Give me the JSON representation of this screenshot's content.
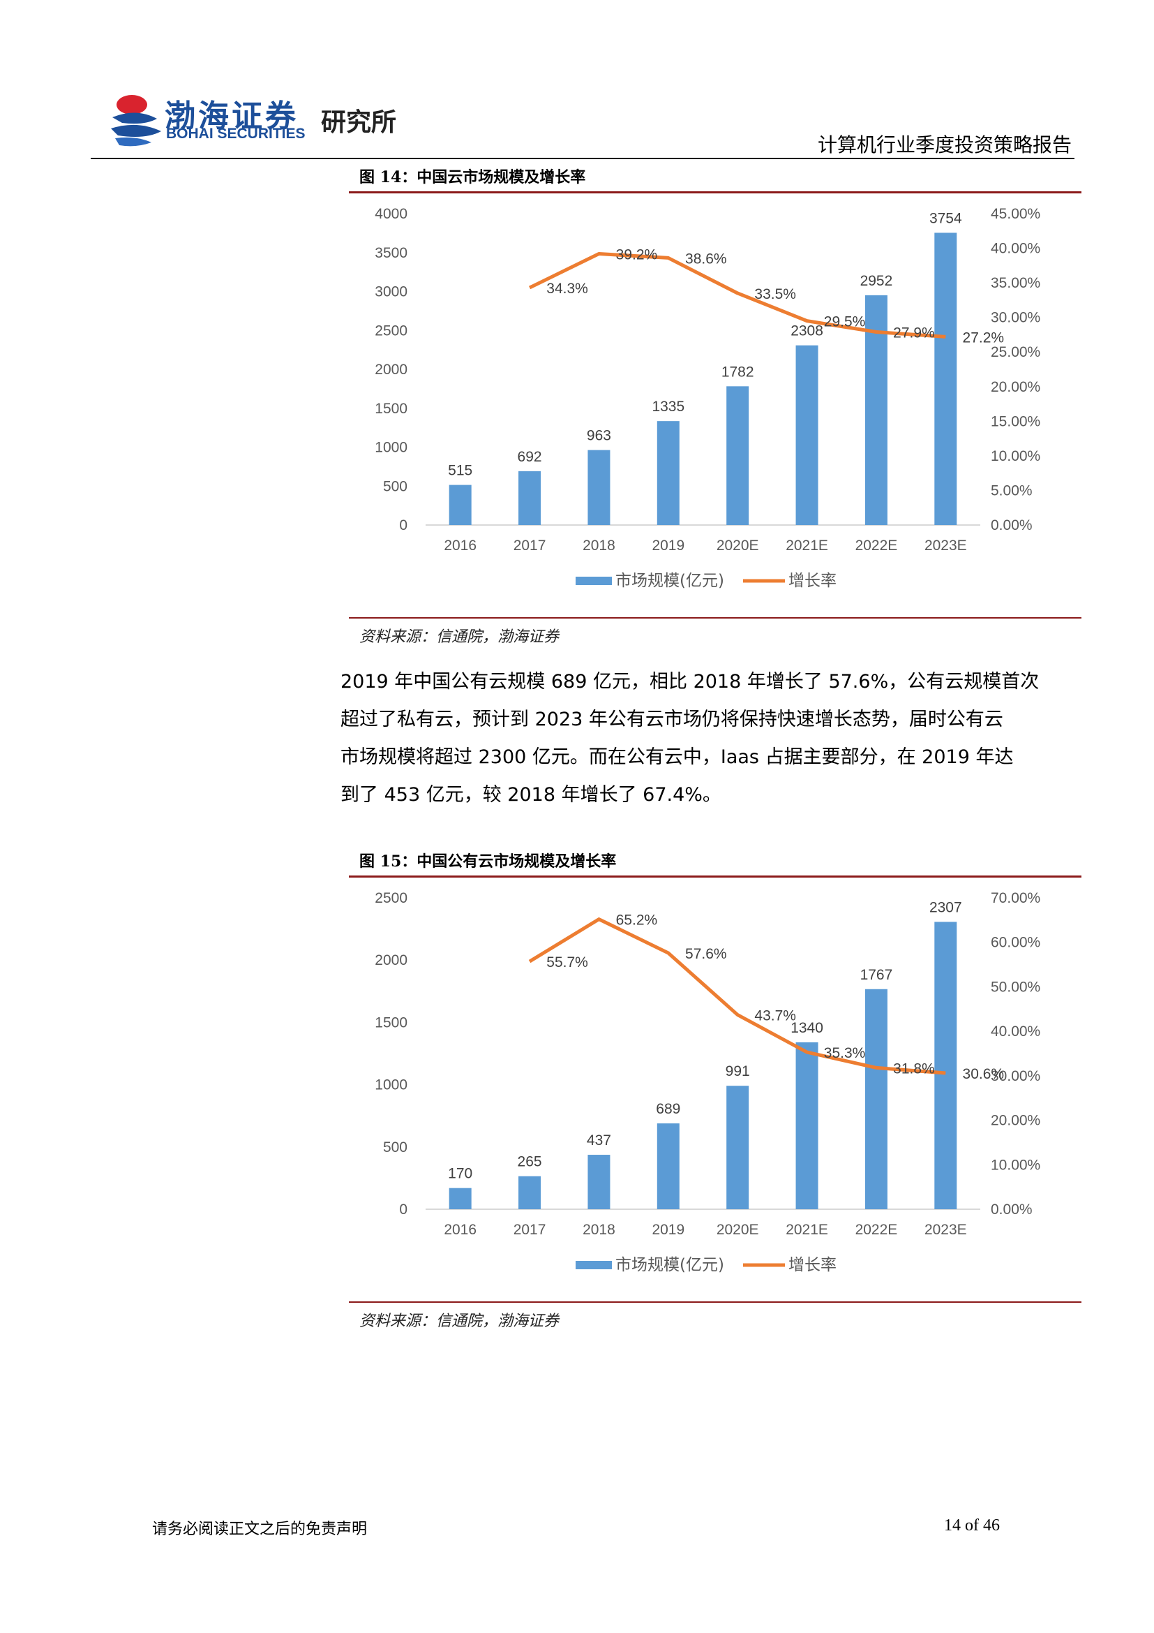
{
  "header": {
    "logo_cn": "渤海证券",
    "logo_en": "BOHAI SECURITIES",
    "institute": "研究所",
    "report_title": "计算机行业季度投资策略报告"
  },
  "figure14": {
    "title": "图 14：中国云市场规模及增长率",
    "source": "资料来源：信通院，渤海证券"
  },
  "figure15": {
    "title": "图 15：中国公有云市场规模及增长率",
    "source": "资料来源：信通院，渤海证券"
  },
  "paragraph": {
    "line1": "2019 年中国公有云规模 689 亿元，相比 2018 年增长了 57.6%，公有云规模首次",
    "line2": "超过了私有云，预计到 2023 年公有云市场仍将保持快速增长态势，届时公有云",
    "line3": "市场规模将超过 2300 亿元。而在公有云中，Iaas 占据主要部分，在 2019 年达",
    "line4": "到了 453 亿元，较 2018 年增长了 67.4%。"
  },
  "footer": {
    "disclaimer": "请务必阅读正文之后的免责声明",
    "page": "14 of 46"
  },
  "colors": {
    "bar": "#5b9bd5",
    "line": "#ed7d31",
    "rule": "#8b1a1a",
    "brand": "#1d4f9a"
  },
  "chart_data": [
    {
      "type": "bar",
      "categories": [
        "2016",
        "2017",
        "2018",
        "2019",
        "2020E",
        "2021E",
        "2022E",
        "2023E"
      ],
      "series": [
        {
          "name": "市场规模(亿元)",
          "type": "bar",
          "axis": "left",
          "values": [
            515,
            692,
            963,
            1335,
            1782,
            2308,
            2952,
            3754
          ],
          "labels": [
            "515",
            "692",
            "963",
            "1335",
            "1782",
            "2308",
            "2952",
            "3754"
          ]
        },
        {
          "name": "增长率",
          "type": "line",
          "axis": "right",
          "values": [
            null,
            34.3,
            39.2,
            38.6,
            33.5,
            29.5,
            27.9,
            27.2
          ],
          "labels": [
            "",
            "34.3%",
            "39.2%",
            "38.6%",
            "33.5%",
            "29.5%",
            "27.9%",
            "27.2%"
          ]
        }
      ],
      "ylim": [
        0,
        4000
      ],
      "yticks": [
        "0",
        "500",
        "1000",
        "1500",
        "2000",
        "2500",
        "3000",
        "3500",
        "4000"
      ],
      "y2lim": [
        0,
        45
      ],
      "y2ticks": [
        "0.00%",
        "5.00%",
        "10.00%",
        "15.00%",
        "20.00%",
        "25.00%",
        "30.00%",
        "35.00%",
        "40.00%",
        "45.00%"
      ],
      "legend": "bottom"
    },
    {
      "type": "bar",
      "categories": [
        "2016",
        "2017",
        "2018",
        "2019",
        "2020E",
        "2021E",
        "2022E",
        "2023E"
      ],
      "series": [
        {
          "name": "市场规模(亿元)",
          "type": "bar",
          "axis": "left",
          "values": [
            170,
            265,
            437,
            689,
            991,
            1340,
            1767,
            2307
          ],
          "labels": [
            "170",
            "265",
            "437",
            "689",
            "991",
            "1340",
            "1767",
            "2307"
          ]
        },
        {
          "name": "增长率",
          "type": "line",
          "axis": "right",
          "values": [
            null,
            55.7,
            65.2,
            57.6,
            43.7,
            35.3,
            31.8,
            30.6
          ],
          "labels": [
            "",
            "55.7%",
            "65.2%",
            "57.6%",
            "43.7%",
            "35.3%",
            "31.8%",
            "30.6%"
          ]
        }
      ],
      "ylim": [
        0,
        2500
      ],
      "yticks": [
        "0",
        "500",
        "1000",
        "1500",
        "2000",
        "2500"
      ],
      "y2lim": [
        0,
        70
      ],
      "y2ticks": [
        "0.00%",
        "10.00%",
        "20.00%",
        "30.00%",
        "40.00%",
        "50.00%",
        "60.00%",
        "70.00%"
      ],
      "legend": "bottom"
    }
  ]
}
